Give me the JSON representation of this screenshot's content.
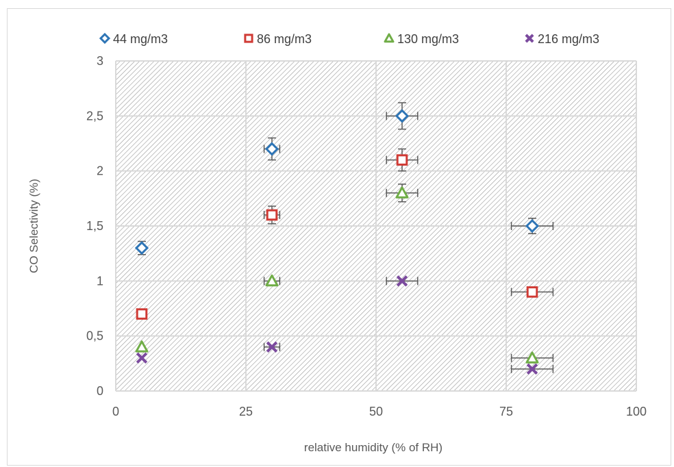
{
  "chart_data": {
    "type": "scatter",
    "title": "",
    "xlabel": "relative humidity (% of RH)",
    "ylabel": "CO Selectivity (%)",
    "xlim": [
      0,
      100
    ],
    "ylim": [
      0,
      3
    ],
    "xticks": [
      0,
      25,
      50,
      75,
      100
    ],
    "xtick_labels": [
      "0",
      "25",
      "50",
      "75",
      "100"
    ],
    "yticks": [
      0,
      0.5,
      1,
      1.5,
      2,
      2.5,
      3
    ],
    "ytick_labels": [
      "0",
      "0,5",
      "1",
      "1,5",
      "2",
      "2,5",
      "3"
    ],
    "grid": true,
    "plot_background": "diagonal hatch",
    "legend_position": "top",
    "series": [
      {
        "name": "44 mg/m3",
        "marker": "diamond",
        "color": "#2e75b6",
        "points": [
          {
            "x": 5,
            "y": 1.3,
            "xerr": 0,
            "yerr": 0.06
          },
          {
            "x": 30,
            "y": 2.2,
            "xerr": 1.5,
            "yerr": 0.1
          },
          {
            "x": 55,
            "y": 2.5,
            "xerr": 3,
            "yerr": 0.12
          },
          {
            "x": 80,
            "y": 1.5,
            "xerr": 4,
            "yerr": 0.07
          }
        ]
      },
      {
        "name": "86 mg/m3",
        "marker": "square",
        "color": "#d03b35",
        "points": [
          {
            "x": 5,
            "y": 0.7,
            "xerr": 0,
            "yerr": 0
          },
          {
            "x": 30,
            "y": 1.6,
            "xerr": 1.5,
            "yerr": 0.08
          },
          {
            "x": 55,
            "y": 2.1,
            "xerr": 3,
            "yerr": 0.1
          },
          {
            "x": 80,
            "y": 0.9,
            "xerr": 4,
            "yerr": 0
          }
        ]
      },
      {
        "name": "130 mg/m3",
        "marker": "triangle",
        "color": "#70ad47",
        "points": [
          {
            "x": 5,
            "y": 0.4,
            "xerr": 0,
            "yerr": 0
          },
          {
            "x": 30,
            "y": 1.0,
            "xerr": 1.5,
            "yerr": 0
          },
          {
            "x": 55,
            "y": 1.8,
            "xerr": 3,
            "yerr": 0.08
          },
          {
            "x": 80,
            "y": 0.3,
            "xerr": 4,
            "yerr": 0
          }
        ]
      },
      {
        "name": "216 mg/m3",
        "marker": "x",
        "color": "#7b4a9e",
        "points": [
          {
            "x": 5,
            "y": 0.3,
            "xerr": 0,
            "yerr": 0
          },
          {
            "x": 30,
            "y": 0.4,
            "xerr": 1.5,
            "yerr": 0
          },
          {
            "x": 55,
            "y": 1.0,
            "xerr": 3,
            "yerr": 0
          },
          {
            "x": 80,
            "y": 0.2,
            "xerr": 4,
            "yerr": 0
          }
        ]
      }
    ]
  }
}
